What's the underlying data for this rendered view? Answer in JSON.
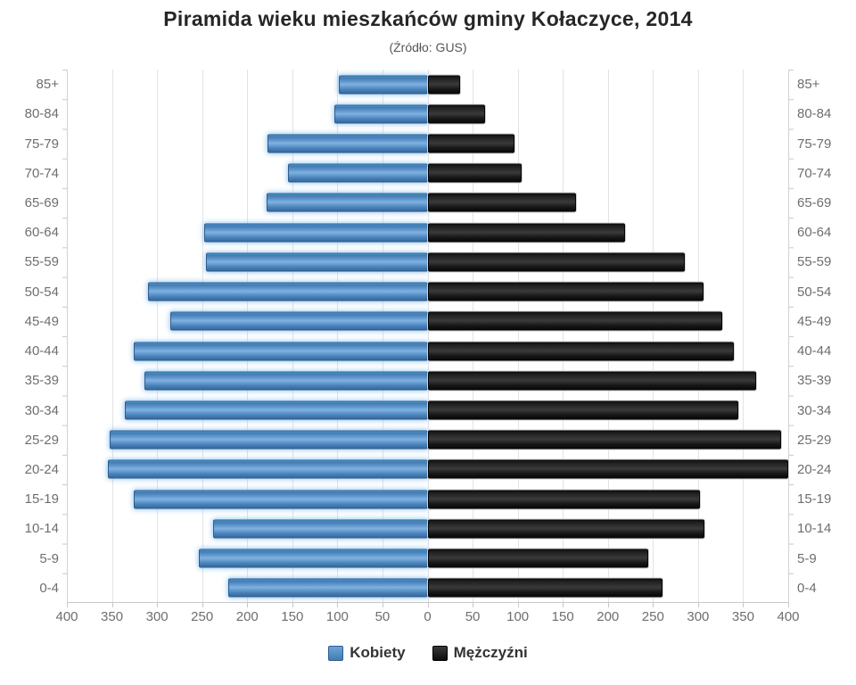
{
  "title": "Piramida wieku mieszkańców gminy Kołaczyce, 2014",
  "subtitle": "(Źródło: GUS)",
  "colors": {
    "kobiety": "#5b8fc9",
    "mezczyzni": "#1d1d1d",
    "grid": "#e3e3e3",
    "axis_text": "#6e6e6e",
    "title_text": "#262626"
  },
  "chart_data": {
    "type": "bar",
    "subtype": "population-pyramid",
    "orientation": "horizontal",
    "title": "Piramida wieku mieszkańców gminy Kołaczyce, 2014",
    "subtitle": "(Źródło: GUS)",
    "categories": [
      "85+",
      "80-84",
      "75-79",
      "70-74",
      "65-69",
      "60-64",
      "55-59",
      "50-54",
      "45-49",
      "40-44",
      "35-39",
      "30-34",
      "25-29",
      "20-24",
      "15-19",
      "10-14",
      "5-9",
      "0-4"
    ],
    "series": [
      {
        "name": "Kobiety",
        "side": "left",
        "color": "#5b8fc9",
        "values": [
          96,
          101,
          176,
          153,
          177,
          246,
          244,
          308,
          283,
          324,
          312,
          334,
          351,
          353,
          324,
          236,
          252,
          219
        ]
      },
      {
        "name": "Mężczyźni",
        "side": "right",
        "color": "#1d1d1d",
        "values": [
          34,
          62,
          94,
          102,
          163,
          217,
          283,
          304,
          325,
          338,
          362,
          343,
          390,
          398,
          300,
          305,
          243,
          259
        ]
      }
    ],
    "x_tick_labels": [
      "400",
      "350",
      "300",
      "250",
      "200",
      "150",
      "100",
      "50",
      "0",
      "50",
      "100",
      "150",
      "200",
      "250",
      "300",
      "350",
      "400"
    ],
    "xlim": [
      -400,
      400
    ],
    "x_tick_step": 50,
    "grid": true,
    "legend_position": "bottom"
  }
}
